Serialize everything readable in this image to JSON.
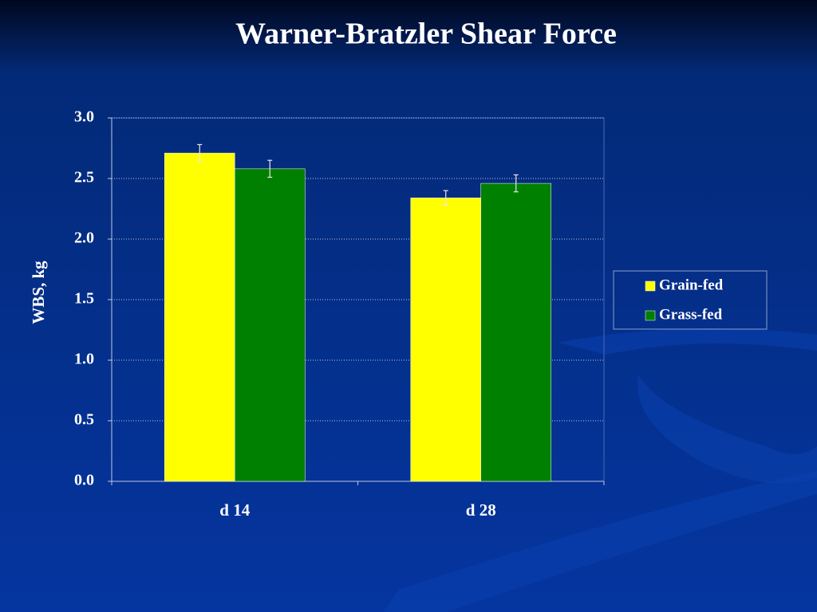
{
  "chart_data": {
    "type": "bar",
    "title": "Warner-Bratzler Shear Force",
    "y_label": "WBS, kg",
    "categories": [
      "d 14",
      "d 28"
    ],
    "series": [
      {
        "name": "Grain-fed",
        "color": "#ffff00",
        "values": [
          2.71,
          2.34
        ],
        "errors": [
          0.07,
          0.06
        ]
      },
      {
        "name": "Grass-fed",
        "color": "#008000",
        "values": [
          2.58,
          2.46
        ],
        "errors": [
          0.07,
          0.07
        ]
      }
    ],
    "ylim": [
      0,
      3
    ],
    "yticks": [
      {
        "value": 0,
        "label": "0.0"
      },
      0.5,
      {
        "value": 1,
        "label": "1.0"
      },
      1.5,
      {
        "value": 2,
        "label": "2.0"
      },
      2.5,
      {
        "value": 3,
        "label": "3.0"
      }
    ],
    "grid": true,
    "legend": "right"
  }
}
